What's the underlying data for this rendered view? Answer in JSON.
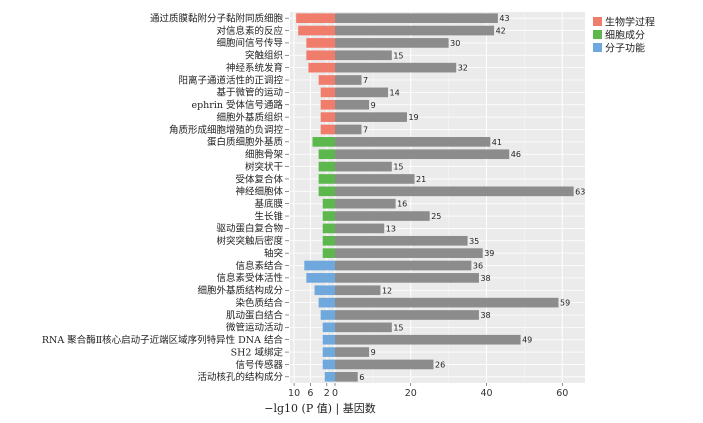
{
  "chart_data": {
    "type": "bar",
    "xlabel": "−lg10 (P 值) | 基因数",
    "left_ticks": [
      "10",
      "6",
      "2"
    ],
    "right_ticks": [
      "0",
      "20",
      "40",
      "60"
    ],
    "right_xlim": [
      0,
      66
    ],
    "left_xlim": [
      0,
      11
    ],
    "grid": true,
    "legend_position": "right-top",
    "groups": [
      {
        "name": "生物学过程",
        "color": "#f07c6c"
      },
      {
        "name": "细胞成分",
        "color": "#5cb84c"
      },
      {
        "name": "分子功能",
        "color": "#6fa8dc"
      }
    ],
    "bar_color": "#8c8c8c",
    "categories": [
      {
        "label": "通过质膜黏附分子黏附同质细胞",
        "group": 0,
        "neglog10p": 9.5,
        "gene_count": 43
      },
      {
        "label": "对信息素的反应",
        "group": 0,
        "neglog10p": 9.0,
        "gene_count": 42
      },
      {
        "label": "细胞间信号传导",
        "group": 0,
        "neglog10p": 7.0,
        "gene_count": 30
      },
      {
        "label": "突触组织",
        "group": 0,
        "neglog10p": 7.0,
        "gene_count": 15
      },
      {
        "label": "神经系统发育",
        "group": 0,
        "neglog10p": 6.5,
        "gene_count": 32
      },
      {
        "label": "阳离子通道活性的正调控",
        "group": 0,
        "neglog10p": 4.0,
        "gene_count": 7
      },
      {
        "label": "基于微管的运动",
        "group": 0,
        "neglog10p": 3.5,
        "gene_count": 14
      },
      {
        "label": "ephrin 受体信号通路",
        "group": 0,
        "neglog10p": 3.5,
        "gene_count": 9
      },
      {
        "label": "细胞外基质组织",
        "group": 0,
        "neglog10p": 3.5,
        "gene_count": 19
      },
      {
        "label": "角质形成细胞增殖的负调控",
        "group": 0,
        "neglog10p": 3.5,
        "gene_count": 7
      },
      {
        "label": "蛋白质细胞外基质",
        "group": 1,
        "neglog10p": 5.5,
        "gene_count": 41
      },
      {
        "label": "细胞骨架",
        "group": 1,
        "neglog10p": 4.0,
        "gene_count": 46
      },
      {
        "label": "树突状干",
        "group": 1,
        "neglog10p": 4.0,
        "gene_count": 15
      },
      {
        "label": "受体复合体",
        "group": 1,
        "neglog10p": 4.0,
        "gene_count": 21
      },
      {
        "label": "神经细胞体",
        "group": 1,
        "neglog10p": 4.0,
        "gene_count": 63
      },
      {
        "label": "基底膜",
        "group": 1,
        "neglog10p": 3.0,
        "gene_count": 16
      },
      {
        "label": "生长锥",
        "group": 1,
        "neglog10p": 3.0,
        "gene_count": 25
      },
      {
        "label": "驱动蛋白复合物",
        "group": 1,
        "neglog10p": 3.0,
        "gene_count": 13
      },
      {
        "label": "树突突触后密度",
        "group": 1,
        "neglog10p": 3.0,
        "gene_count": 35
      },
      {
        "label": "轴突",
        "group": 1,
        "neglog10p": 3.0,
        "gene_count": 39
      },
      {
        "label": "信息素结合",
        "group": 2,
        "neglog10p": 7.5,
        "gene_count": 36
      },
      {
        "label": "信息素受体活性",
        "group": 2,
        "neglog10p": 7.0,
        "gene_count": 38
      },
      {
        "label": "细胞外基质结构成分",
        "group": 2,
        "neglog10p": 5.0,
        "gene_count": 12
      },
      {
        "label": "染色质结合",
        "group": 2,
        "neglog10p": 4.0,
        "gene_count": 59
      },
      {
        "label": "肌动蛋白结合",
        "group": 2,
        "neglog10p": 3.5,
        "gene_count": 38
      },
      {
        "label": "微管运动活动",
        "group": 2,
        "neglog10p": 3.0,
        "gene_count": 15
      },
      {
        "label": "RNA 聚合酶Ⅱ核心启动子近端区域序列特异性 DNA 结合",
        "group": 2,
        "neglog10p": 3.0,
        "gene_count": 49
      },
      {
        "label": "SH2 域绑定",
        "group": 2,
        "neglog10p": 3.0,
        "gene_count": 9
      },
      {
        "label": "信号传感器",
        "group": 2,
        "neglog10p": 3.0,
        "gene_count": 26
      },
      {
        "label": "活动核孔的结构成分",
        "group": 2,
        "neglog10p": 2.5,
        "gene_count": 6
      }
    ]
  }
}
